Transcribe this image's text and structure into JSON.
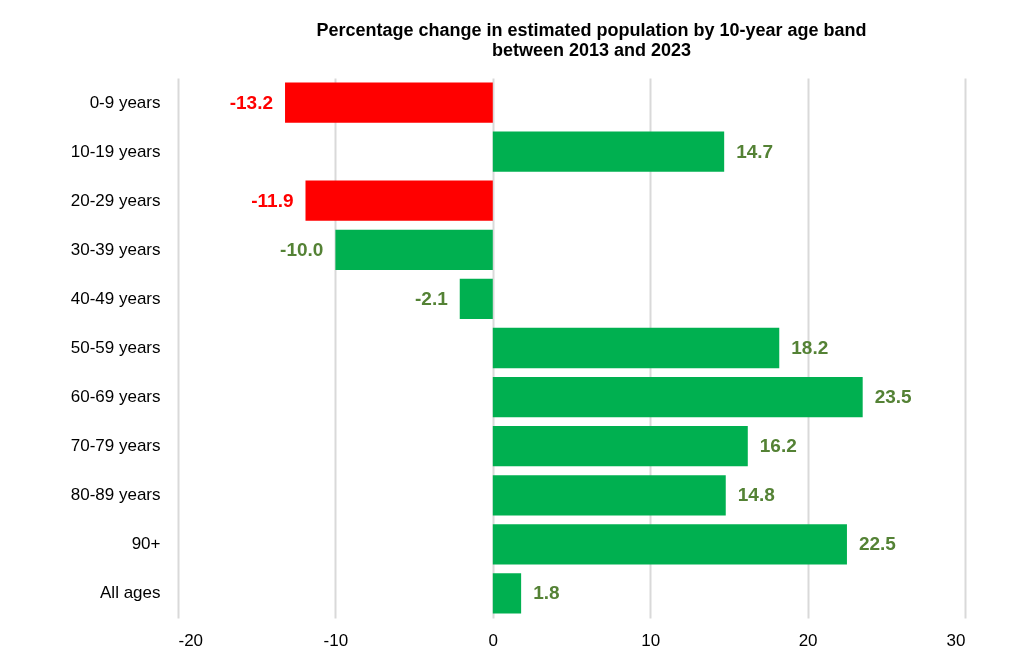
{
  "chart_data": {
    "type": "bar",
    "orientation": "horizontal",
    "title": "Percentage change in estimated population by 10-year age band\nbetween 2013 and 2023",
    "categories": [
      "0-9 years",
      "10-19 years",
      "20-29 years",
      "30-39 years",
      "40-49 years",
      "50-59 years",
      "60-69 years",
      "70-79 years",
      "80-89 years",
      "90+",
      "All ages"
    ],
    "values": [
      -13.2,
      14.7,
      -11.9,
      -10.0,
      -2.1,
      18.2,
      23.5,
      16.2,
      14.8,
      22.5,
      1.8
    ],
    "value_labels": [
      "-13.2",
      "14.7",
      "-11.9",
      "-10.0",
      "-2.1",
      "18.2",
      "23.5",
      "16.2",
      "14.8",
      "22.5",
      "1.8"
    ],
    "colors": [
      "#ff0000",
      "#00b050",
      "#ff0000",
      "#00b050",
      "#00b050",
      "#00b050",
      "#00b050",
      "#00b050",
      "#00b050",
      "#00b050",
      "#00b050"
    ],
    "xlim": [
      -20,
      30
    ],
    "xticks": [
      -20,
      -10,
      0,
      10,
      20,
      30
    ],
    "grid": "x"
  }
}
